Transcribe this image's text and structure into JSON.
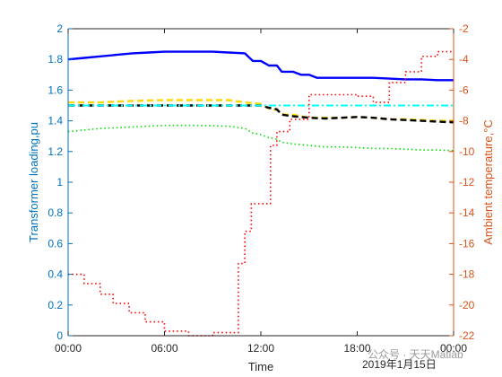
{
  "chart_data": {
    "type": "line",
    "xlabel": "Time",
    "ylabel_left": "Transformer loading,pu",
    "ylabel_right": "Ambient temperature,°C",
    "date_label": "2019年1月15日",
    "watermark": "公众号 · 天天Matlab",
    "x_ticks": [
      "00:00",
      "06:00",
      "12:00",
      "18:00",
      "00:00"
    ],
    "x_range_hours": [
      0,
      24
    ],
    "ylim_left": [
      0,
      2
    ],
    "yticks_left": [
      "0",
      "0.2",
      "0.4",
      "0.6",
      "0.8",
      "1",
      "1.2",
      "1.4",
      "1.6",
      "1.8",
      "2"
    ],
    "ylim_right": [
      -22,
      -2
    ],
    "yticks_right": [
      "-22",
      "-20",
      "-18",
      "-16",
      "-14",
      "-12",
      "-10",
      "-8",
      "-6",
      "-4",
      "-2"
    ],
    "grid": false,
    "legend": "none",
    "series": [
      {
        "axis": "left",
        "color": "#0000FF",
        "style": "solid",
        "points": [
          [
            0,
            1.8
          ],
          [
            1,
            1.81
          ],
          [
            2,
            1.82
          ],
          [
            3,
            1.83
          ],
          [
            4,
            1.84
          ],
          [
            5,
            1.845
          ],
          [
            6,
            1.85
          ],
          [
            7,
            1.85
          ],
          [
            8,
            1.85
          ],
          [
            9,
            1.85
          ],
          [
            10,
            1.845
          ],
          [
            11,
            1.84
          ],
          [
            11.5,
            1.79
          ],
          [
            12,
            1.79
          ],
          [
            12.5,
            1.76
          ],
          [
            13,
            1.76
          ],
          [
            13.3,
            1.72
          ],
          [
            14,
            1.72
          ],
          [
            14.5,
            1.7
          ],
          [
            15,
            1.7
          ],
          [
            15.5,
            1.68
          ],
          [
            16,
            1.68
          ],
          [
            17,
            1.68
          ],
          [
            18,
            1.68
          ],
          [
            19,
            1.68
          ],
          [
            20,
            1.675
          ],
          [
            21,
            1.67
          ],
          [
            22,
            1.67
          ],
          [
            23,
            1.665
          ],
          [
            24,
            1.665
          ]
        ]
      },
      {
        "axis": "left",
        "color": "#FFD800",
        "style": "dashed",
        "points": [
          [
            0,
            1.52
          ],
          [
            2,
            1.52
          ],
          [
            4,
            1.53
          ],
          [
            6,
            1.535
          ],
          [
            8,
            1.535
          ],
          [
            10,
            1.535
          ],
          [
            11,
            1.52
          ],
          [
            12,
            1.51
          ],
          [
            12.5,
            1.48
          ],
          [
            13,
            1.47
          ],
          [
            13.5,
            1.44
          ],
          [
            14,
            1.44
          ],
          [
            15,
            1.42
          ],
          [
            16,
            1.42
          ],
          [
            17,
            1.42
          ],
          [
            18,
            1.425
          ],
          [
            19,
            1.42
          ],
          [
            20,
            1.41
          ],
          [
            21,
            1.41
          ],
          [
            22,
            1.405
          ],
          [
            23,
            1.4
          ],
          [
            24,
            1.4
          ]
        ]
      },
      {
        "axis": "left",
        "color": "#000000",
        "style": "dashed",
        "points": [
          [
            0,
            1.5
          ],
          [
            2,
            1.5
          ],
          [
            4,
            1.5
          ],
          [
            6,
            1.5
          ],
          [
            8,
            1.5
          ],
          [
            10,
            1.5
          ],
          [
            11,
            1.5
          ],
          [
            12,
            1.5
          ],
          [
            12.5,
            1.485
          ],
          [
            13,
            1.475
          ],
          [
            13.3,
            1.44
          ],
          [
            14,
            1.43
          ],
          [
            15,
            1.42
          ],
          [
            16,
            1.415
          ],
          [
            17,
            1.42
          ],
          [
            18,
            1.425
          ],
          [
            19,
            1.42
          ],
          [
            20,
            1.41
          ],
          [
            21,
            1.405
          ],
          [
            22,
            1.4
          ],
          [
            23,
            1.395
          ],
          [
            24,
            1.39
          ]
        ]
      },
      {
        "axis": "left",
        "color": "#00FFFF",
        "style": "dashdot",
        "points": [
          [
            0,
            1.5
          ],
          [
            24,
            1.5
          ]
        ]
      },
      {
        "axis": "left",
        "color": "#00DD00",
        "style": "dotted",
        "points": [
          [
            0,
            1.33
          ],
          [
            1,
            1.34
          ],
          [
            2,
            1.35
          ],
          [
            3,
            1.355
          ],
          [
            4,
            1.36
          ],
          [
            5,
            1.365
          ],
          [
            6,
            1.37
          ],
          [
            8,
            1.37
          ],
          [
            10,
            1.365
          ],
          [
            11,
            1.35
          ],
          [
            11.5,
            1.32
          ],
          [
            12,
            1.31
          ],
          [
            12.5,
            1.29
          ],
          [
            13,
            1.28
          ],
          [
            13.3,
            1.26
          ],
          [
            14,
            1.25
          ],
          [
            15,
            1.24
          ],
          [
            16,
            1.23
          ],
          [
            17,
            1.23
          ],
          [
            18,
            1.225
          ],
          [
            19,
            1.22
          ],
          [
            20,
            1.22
          ],
          [
            21,
            1.215
          ],
          [
            22,
            1.21
          ],
          [
            23,
            1.21
          ],
          [
            24,
            1.205
          ]
        ]
      },
      {
        "axis": "right",
        "color": "#FF0000",
        "style": "dotted",
        "steps": [
          [
            0,
            -18
          ],
          [
            1,
            -18.6
          ],
          [
            2,
            -19.3
          ],
          [
            2.8,
            -19.9
          ],
          [
            3.8,
            -20.5
          ],
          [
            4.8,
            -21.1
          ],
          [
            6,
            -21.7
          ],
          [
            7.5,
            -22
          ],
          [
            9,
            -21.8
          ],
          [
            10.6,
            -17.3
          ],
          [
            11,
            -15.2
          ],
          [
            11.4,
            -13.4
          ],
          [
            12,
            -13.4
          ],
          [
            12.6,
            -9.6
          ],
          [
            13,
            -8.7
          ],
          [
            13.8,
            -7.9
          ],
          [
            15,
            -6.3
          ],
          [
            16,
            -6.3
          ],
          [
            17,
            -6.3
          ],
          [
            18,
            -6.4
          ],
          [
            19,
            -6.8
          ],
          [
            20,
            -5.5
          ],
          [
            21,
            -4.8
          ],
          [
            22,
            -3.8
          ],
          [
            23,
            -3.5
          ],
          [
            24,
            -3.5
          ]
        ]
      }
    ]
  }
}
